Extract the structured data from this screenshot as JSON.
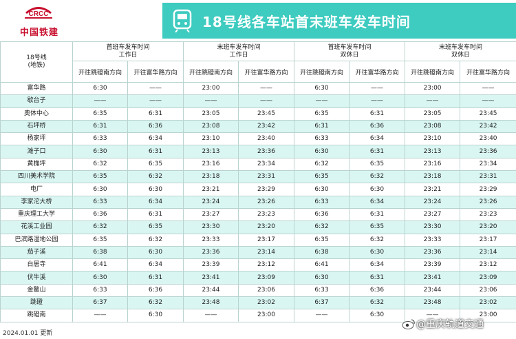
{
  "header": {
    "logo_text": "CRCC",
    "company_name": "中国铁建",
    "title": "18号线各车站首末班车发车时间",
    "brand_color": "#3ecbc0",
    "logo_color": "#c8102e"
  },
  "table": {
    "line_label_1": "18号线",
    "line_label_2": "(地铁)",
    "groups": [
      {
        "label": "首班车发车时间",
        "sub": "工作日"
      },
      {
        "label": "末班车发车时间",
        "sub": "工作日"
      },
      {
        "label": "首班车发车时间",
        "sub": "双休日"
      },
      {
        "label": "末班车发车时间",
        "sub": "双休日"
      }
    ],
    "dir_a": "开往跳磴南方向",
    "dir_b": "开往富华路方向",
    "rows": [
      {
        "station": "富华路",
        "c": [
          "6:30",
          "——",
          "23:00",
          "——",
          "6:30",
          "——",
          "23:00",
          "——"
        ]
      },
      {
        "station": "歇台子",
        "c": [
          "——",
          "——",
          "——",
          "——",
          "——",
          "——",
          "——",
          "——"
        ]
      },
      {
        "station": "奥体中心",
        "c": [
          "6:35",
          "6:31",
          "23:05",
          "23:45",
          "6:35",
          "6:31",
          "23:05",
          "23:45"
        ]
      },
      {
        "station": "石坪桥",
        "c": [
          "6:31",
          "6:36",
          "23:08",
          "23:42",
          "6:31",
          "6:36",
          "23:08",
          "23:42"
        ]
      },
      {
        "station": "杨家坪",
        "c": [
          "6:33",
          "6:34",
          "23:10",
          "23:40",
          "6:33",
          "6:34",
          "23:10",
          "23:40"
        ]
      },
      {
        "station": "滩子口",
        "c": [
          "6:30",
          "6:31",
          "23:13",
          "23:36",
          "6:30",
          "6:31",
          "23:13",
          "23:36"
        ]
      },
      {
        "station": "黄桷坪",
        "c": [
          "6:32",
          "6:35",
          "23:16",
          "23:34",
          "6:32",
          "6:35",
          "23:16",
          "23:34"
        ]
      },
      {
        "station": "四川美术学院",
        "c": [
          "6:35",
          "6:32",
          "23:18",
          "23:31",
          "6:35",
          "6:32",
          "23:18",
          "23:31"
        ]
      },
      {
        "station": "电厂",
        "c": [
          "6:30",
          "6:30",
          "23:21",
          "23:29",
          "6:30",
          "6:30",
          "23:21",
          "23:29"
        ]
      },
      {
        "station": "李家沱大桥",
        "c": [
          "6:33",
          "6:34",
          "23:24",
          "23:26",
          "6:33",
          "6:34",
          "23:24",
          "23:26"
        ]
      },
      {
        "station": "重庆理工大学",
        "c": [
          "6:36",
          "6:31",
          "23:27",
          "23:23",
          "6:36",
          "6:31",
          "23:27",
          "23:23"
        ]
      },
      {
        "station": "花溪工业园",
        "c": [
          "6:32",
          "6:35",
          "23:30",
          "23:20",
          "6:32",
          "6:35",
          "23:30",
          "23:20"
        ]
      },
      {
        "station": "巴滨路湿地公园",
        "c": [
          "6:35",
          "6:32",
          "23:33",
          "23:17",
          "6:35",
          "6:32",
          "23:33",
          "23:17"
        ]
      },
      {
        "station": "茄子溪",
        "c": [
          "6:38",
          "6:30",
          "23:36",
          "23:14",
          "6:38",
          "6:30",
          "23:36",
          "23:14"
        ]
      },
      {
        "station": "白居寺",
        "c": [
          "6:41",
          "6:34",
          "23:39",
          "23:12",
          "6:41",
          "6:34",
          "23:39",
          "23:12"
        ]
      },
      {
        "station": "伏牛溪",
        "c": [
          "6:30",
          "6:31",
          "23:41",
          "23:09",
          "6:30",
          "6:31",
          "23:41",
          "23:09"
        ]
      },
      {
        "station": "金鳌山",
        "c": [
          "6:33",
          "6:36",
          "23:44",
          "23:06",
          "6:33",
          "6:36",
          "23:44",
          "23:06"
        ]
      },
      {
        "station": "跳磴",
        "c": [
          "6:37",
          "6:32",
          "23:48",
          "23:02",
          "6:37",
          "6:32",
          "23:48",
          "23:02"
        ]
      },
      {
        "station": "跳磴南",
        "c": [
          "——",
          "6:30",
          "——",
          "23:00",
          "——",
          "6:30",
          "——",
          "23:00"
        ]
      }
    ]
  },
  "footer": {
    "date": "2024.01.01 更新",
    "watermark": "@重庆轨道交通"
  }
}
